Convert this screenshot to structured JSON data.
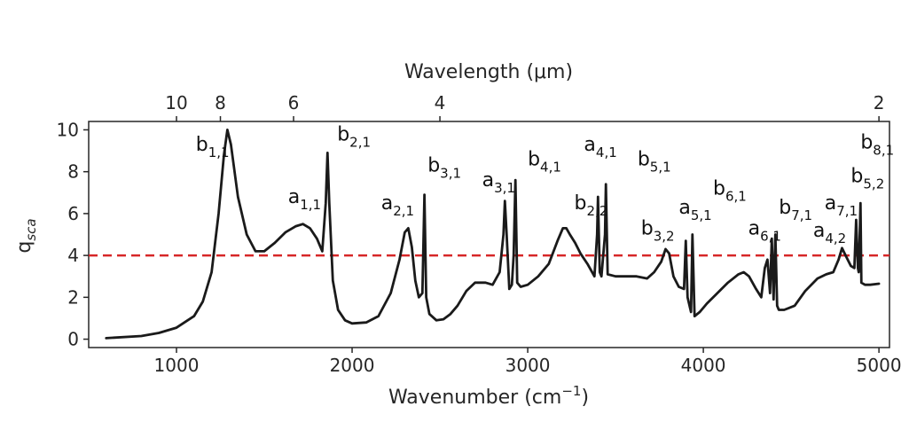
{
  "chart_data": {
    "type": "line",
    "xlabel_top": "Wavelength (μm)",
    "xlabel_bottom": "Wavenumber (cm⁻¹)",
    "ylabel": "q",
    "ylabel_sub": "sca",
    "xlim": [
      500,
      5060
    ],
    "ylim": [
      -0.4,
      10.4
    ],
    "x_ticks": [
      1000,
      2000,
      3000,
      4000,
      5000
    ],
    "x_tick_labels": [
      "1000",
      "2000",
      "3000",
      "4000",
      "5000"
    ],
    "top_ticks_um": [
      10,
      8,
      6,
      4,
      2
    ],
    "top_tick_labels": [
      "10",
      "8",
      "6",
      "4",
      "2"
    ],
    "y_ticks": [
      0,
      2,
      4,
      6,
      8,
      10
    ],
    "y_tick_labels": [
      "0",
      "2",
      "4",
      "6",
      "8",
      "10"
    ],
    "grid": false,
    "colors": {
      "curve": "#1a1a1a",
      "threshold": "#d62728"
    },
    "threshold": {
      "y": 4.0,
      "style": "dashed"
    },
    "series": [
      {
        "x": [
          600,
          800,
          900,
          1000,
          1100,
          1150,
          1200,
          1240,
          1270,
          1290,
          1310,
          1350,
          1400,
          1450,
          1500,
          1560,
          1620,
          1680,
          1720,
          1760,
          1800,
          1830,
          1850,
          1860,
          1870,
          1890,
          1920,
          1960,
          2000,
          2080,
          2150,
          2220,
          2270,
          2300,
          2320,
          2340,
          2360,
          2380,
          2400,
          2412,
          2422,
          2440,
          2480,
          2520,
          2560,
          2600,
          2650,
          2700,
          2760,
          2800,
          2840,
          2862,
          2870,
          2880,
          2895,
          2910,
          2920,
          2930,
          2940,
          2960,
          3000,
          3060,
          3120,
          3170,
          3200,
          3220,
          3240,
          3270,
          3300,
          3340,
          3380,
          3395,
          3400,
          3410,
          3420,
          3440,
          3445,
          3455,
          3500,
          3560,
          3620,
          3680,
          3720,
          3760,
          3785,
          3805,
          3830,
          3860,
          3890,
          3900,
          3910,
          3930,
          3938,
          3950,
          3980,
          4020,
          4080,
          4140,
          4200,
          4230,
          4260,
          4300,
          4330,
          4350,
          4365,
          4380,
          4390,
          4400,
          4410,
          4420,
          4430,
          4460,
          4520,
          4580,
          4650,
          4700,
          4740,
          4770,
          4790,
          4810,
          4840,
          4860,
          4870,
          4880,
          4885,
          4890,
          4895,
          4900,
          4920,
          4950,
          5000
        ],
        "y": [
          0.05,
          0.15,
          0.3,
          0.55,
          1.1,
          1.8,
          3.2,
          6.0,
          8.8,
          10.0,
          9.3,
          6.8,
          5.0,
          4.2,
          4.2,
          4.6,
          5.1,
          5.4,
          5.5,
          5.3,
          4.8,
          4.2,
          6.5,
          8.9,
          6.5,
          2.8,
          1.4,
          0.9,
          0.75,
          0.8,
          1.1,
          2.2,
          3.8,
          5.1,
          5.3,
          4.4,
          2.8,
          2.0,
          2.2,
          6.9,
          2.0,
          1.2,
          0.9,
          0.95,
          1.2,
          1.6,
          2.3,
          2.7,
          2.7,
          2.6,
          3.2,
          5.0,
          6.6,
          5.0,
          2.4,
          2.6,
          4.0,
          7.6,
          2.7,
          2.5,
          2.6,
          3.0,
          3.6,
          4.7,
          5.3,
          5.3,
          5.0,
          4.6,
          4.1,
          3.6,
          3.0,
          5.0,
          6.8,
          3.2,
          3.0,
          5.0,
          7.4,
          3.1,
          3.0,
          3.0,
          3.0,
          2.9,
          3.2,
          3.7,
          4.3,
          4.1,
          3.0,
          2.5,
          2.4,
          4.7,
          2.0,
          1.3,
          5.0,
          1.1,
          1.3,
          1.7,
          2.2,
          2.7,
          3.1,
          3.2,
          3.0,
          2.4,
          2.0,
          3.4,
          3.8,
          2.2,
          4.8,
          1.9,
          5.0,
          1.6,
          1.4,
          1.4,
          1.6,
          2.3,
          2.9,
          3.1,
          3.2,
          3.8,
          4.35,
          4.0,
          3.5,
          3.4,
          5.7,
          3.4,
          3.2,
          4.7,
          6.5,
          2.7,
          2.6,
          2.6,
          2.65
        ]
      }
    ],
    "annotations": [
      {
        "main": "b",
        "sub": "1,1",
        "x": 1110,
        "y": 9.0
      },
      {
        "main": "b",
        "sub": "2,1",
        "x": 1915,
        "y": 9.5
      },
      {
        "main": "a",
        "sub": "1,1",
        "x": 1635,
        "y": 6.5
      },
      {
        "main": "a",
        "sub": "2,1",
        "x": 2165,
        "y": 6.2
      },
      {
        "main": "b",
        "sub": "3,1",
        "x": 2430,
        "y": 8.0
      },
      {
        "main": "a",
        "sub": "3,1",
        "x": 2740,
        "y": 7.3
      },
      {
        "main": "b",
        "sub": "4,1",
        "x": 3000,
        "y": 8.3
      },
      {
        "main": "a",
        "sub": "4,1",
        "x": 3320,
        "y": 9.0
      },
      {
        "main": "b",
        "sub": "5,1",
        "x": 3625,
        "y": 8.3
      },
      {
        "main": "b",
        "sub": "2,2",
        "x": 3265,
        "y": 6.2
      },
      {
        "main": "b",
        "sub": "3,2",
        "x": 3645,
        "y": 5.0
      },
      {
        "main": "a",
        "sub": "5,1",
        "x": 3860,
        "y": 6.0
      },
      {
        "main": "b",
        "sub": "6,1",
        "x": 4055,
        "y": 6.9
      },
      {
        "main": "a",
        "sub": "6,1",
        "x": 4255,
        "y": 5.0
      },
      {
        "main": "b",
        "sub": "7,1",
        "x": 4430,
        "y": 6.0
      },
      {
        "main": "a",
        "sub": "7,1",
        "x": 4690,
        "y": 6.2
      },
      {
        "main": "a",
        "sub": "4,2",
        "x": 4625,
        "y": 4.9
      },
      {
        "main": "b",
        "sub": "5,2",
        "x": 4840,
        "y": 7.5
      },
      {
        "main": "b",
        "sub": "8,1",
        "x": 4895,
        "y": 9.1
      }
    ]
  }
}
